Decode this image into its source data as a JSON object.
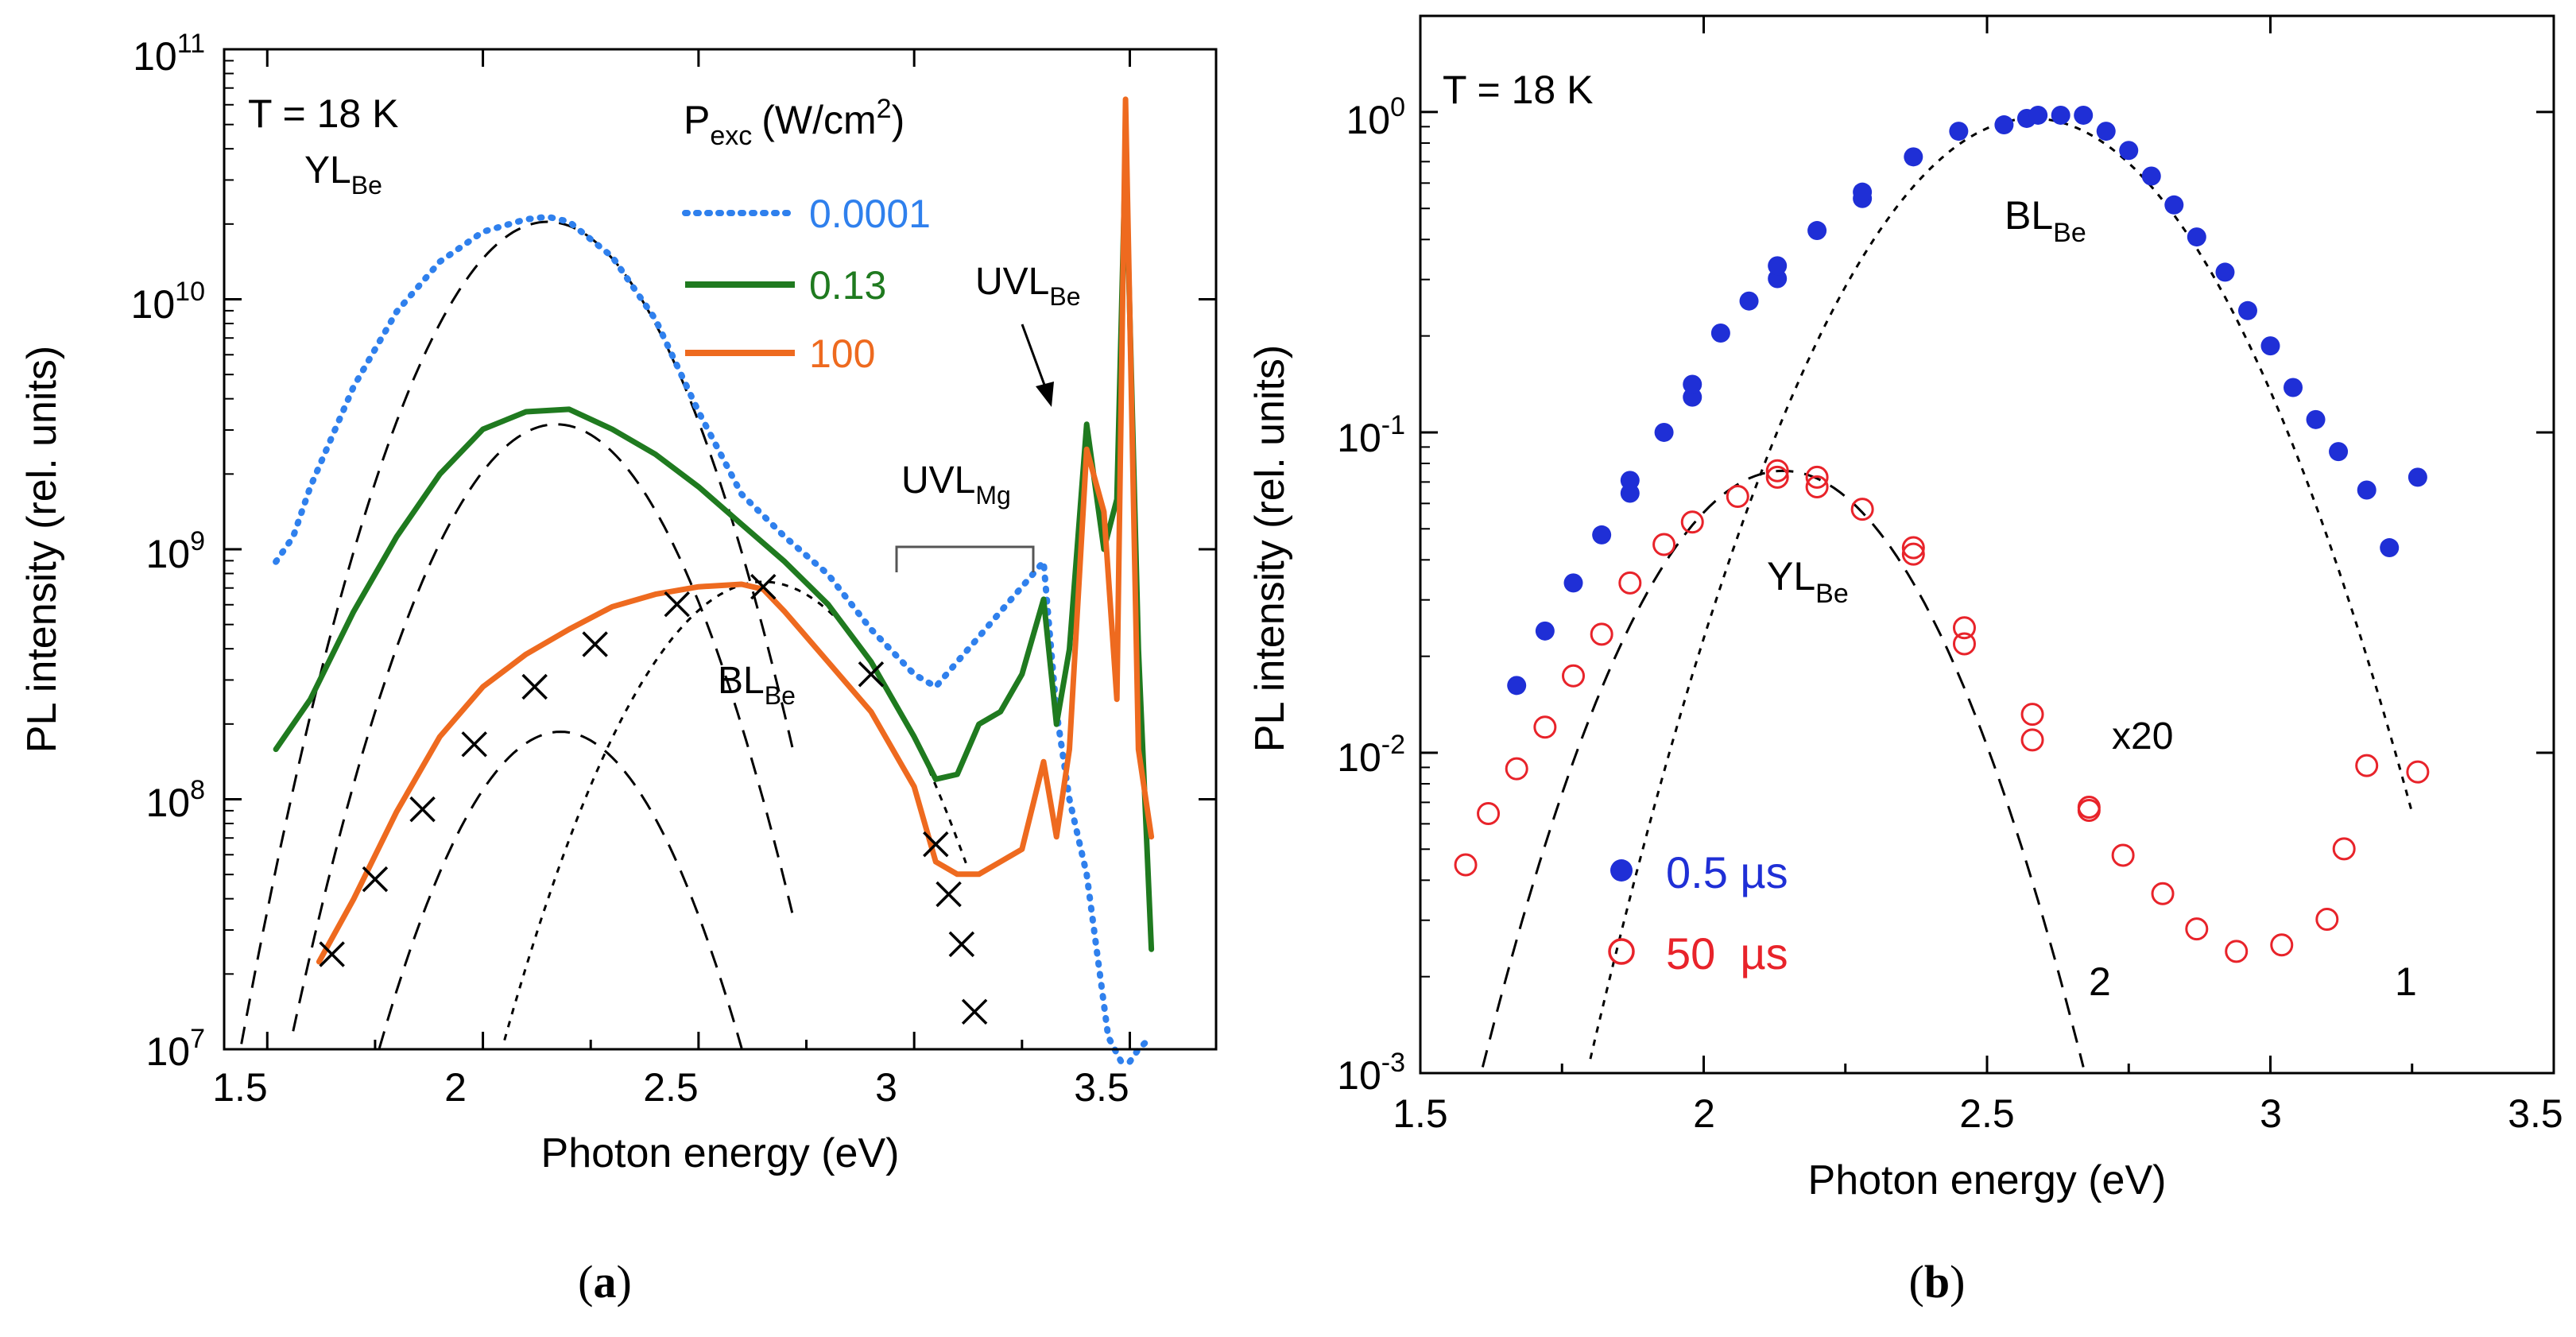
{
  "chart_data": [
    {
      "panel": "(a)",
      "type": "line",
      "yscale": "log",
      "xlabel": "Photon energy (eV)",
      "ylabel": "PL intensity (rel. units)",
      "xlim": [
        1.4,
        3.7
      ],
      "ylim_exp": [
        7,
        11
      ],
      "xticks": [
        "1.5",
        "2",
        "2.5",
        "3",
        "3.5"
      ],
      "yticks": [
        {
          "base": "10",
          "exp": "7"
        },
        {
          "base": "10",
          "exp": "8"
        },
        {
          "base": "10",
          "exp": "9"
        },
        {
          "base": "10",
          "exp": "10"
        },
        {
          "base": "10",
          "exp": "11"
        }
      ],
      "temperature_label": "T = 18 K",
      "legend_title": {
        "main": "P",
        "sub": "exc",
        "units_pre": "(W/cm",
        "units_sup": "2",
        "units_post": ")"
      },
      "series": [
        {
          "name": "0.0001",
          "color": "#2f80ed",
          "style": "dotted",
          "x": [
            1.52,
            1.56,
            1.6,
            1.7,
            1.8,
            1.9,
            2.0,
            2.1,
            2.15,
            2.2,
            2.3,
            2.4,
            2.5,
            2.6,
            2.7,
            2.8,
            2.9,
            3.0,
            3.05,
            3.1,
            3.15,
            3.2,
            3.25,
            3.3,
            3.33,
            3.36,
            3.4,
            3.45,
            3.48,
            3.5,
            3.52,
            3.55
          ],
          "y": [
            8.95,
            9.05,
            9.25,
            9.65,
            9.95,
            10.15,
            10.27,
            10.32,
            10.33,
            10.31,
            10.17,
            9.92,
            9.55,
            9.22,
            9.05,
            8.9,
            8.68,
            8.5,
            8.45,
            8.55,
            8.65,
            8.75,
            8.85,
            8.95,
            8.35,
            8.0,
            7.7,
            7.05,
            6.8,
            6.9,
            7.0,
            7.05
          ]
        },
        {
          "name": "0.13",
          "color": "#1f7a1f",
          "style": "solid",
          "x": [
            1.52,
            1.6,
            1.7,
            1.8,
            1.9,
            2.0,
            2.1,
            2.2,
            2.3,
            2.4,
            2.5,
            2.6,
            2.7,
            2.8,
            2.9,
            3.0,
            3.05,
            3.1,
            3.15,
            3.2,
            3.25,
            3.3,
            3.33,
            3.36,
            3.4,
            3.44,
            3.47,
            3.49,
            3.52,
            3.55
          ],
          "y": [
            8.2,
            8.4,
            8.75,
            9.05,
            9.3,
            9.48,
            9.55,
            9.56,
            9.48,
            9.38,
            9.25,
            9.1,
            8.95,
            8.78,
            8.55,
            8.25,
            8.08,
            8.1,
            8.3,
            8.35,
            8.5,
            8.8,
            8.3,
            8.6,
            9.5,
            9.0,
            9.2,
            10.6,
            8.6,
            7.4
          ]
        },
        {
          "name": "100",
          "color": "#ee6a1f",
          "style": "solid",
          "x": [
            1.62,
            1.7,
            1.8,
            1.9,
            2.0,
            2.1,
            2.2,
            2.3,
            2.4,
            2.5,
            2.6,
            2.65,
            2.7,
            2.8,
            2.9,
            3.0,
            3.05,
            3.1,
            3.15,
            3.2,
            3.25,
            3.3,
            3.33,
            3.36,
            3.4,
            3.44,
            3.47,
            3.49,
            3.52,
            3.55
          ],
          "y": [
            7.35,
            7.6,
            7.95,
            8.25,
            8.45,
            8.58,
            8.68,
            8.77,
            8.82,
            8.85,
            8.86,
            8.84,
            8.75,
            8.55,
            8.35,
            8.05,
            7.75,
            7.7,
            7.7,
            7.75,
            7.8,
            8.15,
            7.85,
            8.2,
            9.4,
            9.15,
            8.4,
            10.8,
            8.2,
            7.85
          ]
        }
      ],
      "markers_x": {
        "x": [
          1.65,
          1.75,
          1.86,
          1.98,
          2.12,
          2.26,
          2.45,
          2.65,
          2.9,
          3.05,
          3.08,
          3.11,
          3.14
        ],
        "y": [
          7.38,
          7.68,
          7.96,
          8.22,
          8.45,
          8.62,
          8.78,
          8.85,
          8.5,
          7.82,
          7.62,
          7.42,
          7.15
        ]
      },
      "model_curves": [
        {
          "style": "dashed",
          "peak_x": 2.15,
          "peak_y": 10.31,
          "width": 0.258,
          "xmin": 1.42,
          "xmax": 2.72
        },
        {
          "style": "dashed",
          "peak_x": 2.17,
          "peak_y": 9.5,
          "width": 0.258,
          "xmin": 1.42,
          "xmax": 2.72
        },
        {
          "style": "dashed",
          "peak_x": 2.18,
          "peak_y": 8.27,
          "width": 0.246,
          "xmin": 1.58,
          "xmax": 2.65
        },
        {
          "style": "dotted",
          "peak_x": 2.65,
          "peak_y": 8.87,
          "width": 0.292,
          "xmin": 1.78,
          "xmax": 3.12
        }
      ],
      "annotations": {
        "yl": {
          "main": "YL",
          "sub": "Be"
        },
        "bl": {
          "main": "BL",
          "sub": "Be"
        },
        "uvl_mg": {
          "main": "UVL",
          "sub": "Mg"
        },
        "uvl_be": {
          "main": "UVL",
          "sub": "Be"
        }
      }
    },
    {
      "panel": "(b)",
      "type": "scatter",
      "yscale": "log",
      "xlabel": "Photon energy (eV)",
      "ylabel": "PL intensity (rel. units)",
      "xlim": [
        1.5,
        3.5
      ],
      "ylim_exp": [
        -3,
        0.3
      ],
      "xticks": [
        "1.5",
        "2",
        "2.5",
        "3",
        "3.5"
      ],
      "yticks": [
        {
          "base": "10",
          "exp": "-3"
        },
        {
          "base": "10",
          "exp": "-2"
        },
        {
          "base": "10",
          "exp": "-1"
        },
        {
          "base": "10",
          "exp": "0"
        }
      ],
      "temperature_label": "T = 18 K",
      "series": [
        {
          "name": "0.5 µs",
          "color": "#1f2fd6",
          "marker": "filled-circle",
          "x": [
            1.67,
            1.72,
            1.77,
            1.82,
            1.87,
            1.87,
            1.93,
            1.98,
            1.98,
            2.03,
            2.08,
            2.13,
            2.13,
            2.2,
            2.28,
            2.28,
            2.37,
            2.45,
            2.53,
            2.57,
            2.59,
            2.63,
            2.67,
            2.71,
            2.75,
            2.79,
            2.83,
            2.87,
            2.92,
            2.96,
            3.0,
            3.04,
            3.08,
            3.12,
            3.17,
            3.21,
            3.26
          ],
          "y": [
            -1.79,
            -1.62,
            -1.47,
            -1.32,
            -1.19,
            -1.15,
            -1.0,
            -0.89,
            -0.85,
            -0.69,
            -0.59,
            -0.52,
            -0.48,
            -0.37,
            -0.27,
            -0.25,
            -0.14,
            -0.06,
            -0.04,
            -0.02,
            -0.01,
            -0.01,
            -0.01,
            -0.06,
            -0.12,
            -0.2,
            -0.29,
            -0.39,
            -0.5,
            -0.62,
            -0.73,
            -0.86,
            -0.96,
            -1.06,
            -1.18,
            -1.36,
            -1.14
          ]
        },
        {
          "name": "50  µs",
          "color": "#e8232a",
          "marker": "open-circle",
          "x": [
            1.58,
            1.62,
            1.67,
            1.72,
            1.77,
            1.82,
            1.87,
            1.93,
            1.98,
            2.06,
            2.13,
            2.13,
            2.2,
            2.2,
            2.28,
            2.37,
            2.37,
            2.46,
            2.46,
            2.58,
            2.58,
            2.68,
            2.68,
            2.74,
            2.81,
            2.87,
            2.94,
            3.02,
            3.1,
            3.13,
            3.17,
            3.26
          ],
          "y": [
            -2.35,
            -2.19,
            -2.05,
            -1.92,
            -1.76,
            -1.63,
            -1.47,
            -1.35,
            -1.28,
            -1.2,
            -1.12,
            -1.14,
            -1.14,
            -1.17,
            -1.24,
            -1.36,
            -1.38,
            -1.61,
            -1.66,
            -1.88,
            -1.96,
            -2.17,
            -2.18,
            -2.32,
            -2.44,
            -2.55,
            -2.62,
            -2.6,
            -2.52,
            -2.3,
            -2.04,
            -2.06
          ]
        }
      ],
      "model_curves": [
        {
          "label": "1",
          "style": "dotted",
          "peak_x": 2.58,
          "peak_y": -0.02,
          "width": 0.3,
          "xmin": 1.55,
          "xmax": 3.25
        },
        {
          "label": "2",
          "style": "dashed",
          "peak_x": 2.14,
          "peak_y": -1.12,
          "width": 0.256,
          "xmin": 1.53,
          "xmax": 2.69
        }
      ],
      "annotations": {
        "bl": {
          "main": "BL",
          "sub": "Be"
        },
        "yl": {
          "main": "YL",
          "sub": "Be"
        },
        "scale": "x20",
        "curve1": "1",
        "curve2": "2"
      }
    }
  ]
}
